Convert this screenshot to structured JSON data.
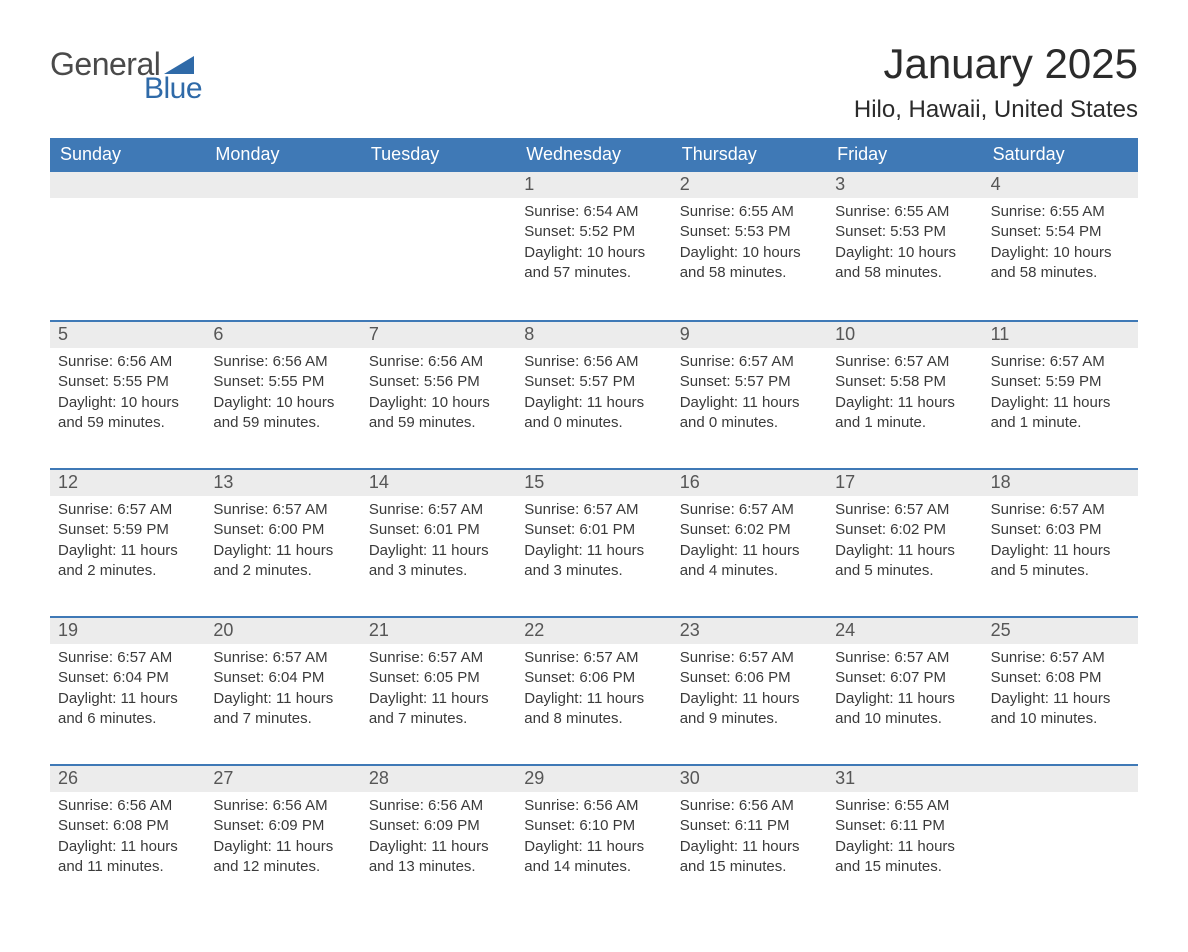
{
  "logo": {
    "text1": "General",
    "text2": "Blue",
    "flag_color": "#2f6aa8"
  },
  "title": "January 2025",
  "location": "Hilo, Hawaii, United States",
  "colors": {
    "header_bg": "#3f79b6",
    "header_text": "#ffffff",
    "daynum_bg": "#ececec",
    "daynum_text": "#565656",
    "body_text": "#3a3a3a",
    "week_border": "#3f79b6"
  },
  "dow": [
    "Sunday",
    "Monday",
    "Tuesday",
    "Wednesday",
    "Thursday",
    "Friday",
    "Saturday"
  ],
  "weeks": [
    [
      null,
      null,
      null,
      {
        "n": "1",
        "sunrise": "6:54 AM",
        "sunset": "5:52 PM",
        "daylight": "10 hours and 57 minutes."
      },
      {
        "n": "2",
        "sunrise": "6:55 AM",
        "sunset": "5:53 PM",
        "daylight": "10 hours and 58 minutes."
      },
      {
        "n": "3",
        "sunrise": "6:55 AM",
        "sunset": "5:53 PM",
        "daylight": "10 hours and 58 minutes."
      },
      {
        "n": "4",
        "sunrise": "6:55 AM",
        "sunset": "5:54 PM",
        "daylight": "10 hours and 58 minutes."
      }
    ],
    [
      {
        "n": "5",
        "sunrise": "6:56 AM",
        "sunset": "5:55 PM",
        "daylight": "10 hours and 59 minutes."
      },
      {
        "n": "6",
        "sunrise": "6:56 AM",
        "sunset": "5:55 PM",
        "daylight": "10 hours and 59 minutes."
      },
      {
        "n": "7",
        "sunrise": "6:56 AM",
        "sunset": "5:56 PM",
        "daylight": "10 hours and 59 minutes."
      },
      {
        "n": "8",
        "sunrise": "6:56 AM",
        "sunset": "5:57 PM",
        "daylight": "11 hours and 0 minutes."
      },
      {
        "n": "9",
        "sunrise": "6:57 AM",
        "sunset": "5:57 PM",
        "daylight": "11 hours and 0 minutes."
      },
      {
        "n": "10",
        "sunrise": "6:57 AM",
        "sunset": "5:58 PM",
        "daylight": "11 hours and 1 minute."
      },
      {
        "n": "11",
        "sunrise": "6:57 AM",
        "sunset": "5:59 PM",
        "daylight": "11 hours and 1 minute."
      }
    ],
    [
      {
        "n": "12",
        "sunrise": "6:57 AM",
        "sunset": "5:59 PM",
        "daylight": "11 hours and 2 minutes."
      },
      {
        "n": "13",
        "sunrise": "6:57 AM",
        "sunset": "6:00 PM",
        "daylight": "11 hours and 2 minutes."
      },
      {
        "n": "14",
        "sunrise": "6:57 AM",
        "sunset": "6:01 PM",
        "daylight": "11 hours and 3 minutes."
      },
      {
        "n": "15",
        "sunrise": "6:57 AM",
        "sunset": "6:01 PM",
        "daylight": "11 hours and 3 minutes."
      },
      {
        "n": "16",
        "sunrise": "6:57 AM",
        "sunset": "6:02 PM",
        "daylight": "11 hours and 4 minutes."
      },
      {
        "n": "17",
        "sunrise": "6:57 AM",
        "sunset": "6:02 PM",
        "daylight": "11 hours and 5 minutes."
      },
      {
        "n": "18",
        "sunrise": "6:57 AM",
        "sunset": "6:03 PM",
        "daylight": "11 hours and 5 minutes."
      }
    ],
    [
      {
        "n": "19",
        "sunrise": "6:57 AM",
        "sunset": "6:04 PM",
        "daylight": "11 hours and 6 minutes."
      },
      {
        "n": "20",
        "sunrise": "6:57 AM",
        "sunset": "6:04 PM",
        "daylight": "11 hours and 7 minutes."
      },
      {
        "n": "21",
        "sunrise": "6:57 AM",
        "sunset": "6:05 PM",
        "daylight": "11 hours and 7 minutes."
      },
      {
        "n": "22",
        "sunrise": "6:57 AM",
        "sunset": "6:06 PM",
        "daylight": "11 hours and 8 minutes."
      },
      {
        "n": "23",
        "sunrise": "6:57 AM",
        "sunset": "6:06 PM",
        "daylight": "11 hours and 9 minutes."
      },
      {
        "n": "24",
        "sunrise": "6:57 AM",
        "sunset": "6:07 PM",
        "daylight": "11 hours and 10 minutes."
      },
      {
        "n": "25",
        "sunrise": "6:57 AM",
        "sunset": "6:08 PM",
        "daylight": "11 hours and 10 minutes."
      }
    ],
    [
      {
        "n": "26",
        "sunrise": "6:56 AM",
        "sunset": "6:08 PM",
        "daylight": "11 hours and 11 minutes."
      },
      {
        "n": "27",
        "sunrise": "6:56 AM",
        "sunset": "6:09 PM",
        "daylight": "11 hours and 12 minutes."
      },
      {
        "n": "28",
        "sunrise": "6:56 AM",
        "sunset": "6:09 PM",
        "daylight": "11 hours and 13 minutes."
      },
      {
        "n": "29",
        "sunrise": "6:56 AM",
        "sunset": "6:10 PM",
        "daylight": "11 hours and 14 minutes."
      },
      {
        "n": "30",
        "sunrise": "6:56 AM",
        "sunset": "6:11 PM",
        "daylight": "11 hours and 15 minutes."
      },
      {
        "n": "31",
        "sunrise": "6:55 AM",
        "sunset": "6:11 PM",
        "daylight": "11 hours and 15 minutes."
      },
      null
    ]
  ],
  "labels": {
    "sunrise": "Sunrise: ",
    "sunset": "Sunset: ",
    "daylight": "Daylight: "
  }
}
